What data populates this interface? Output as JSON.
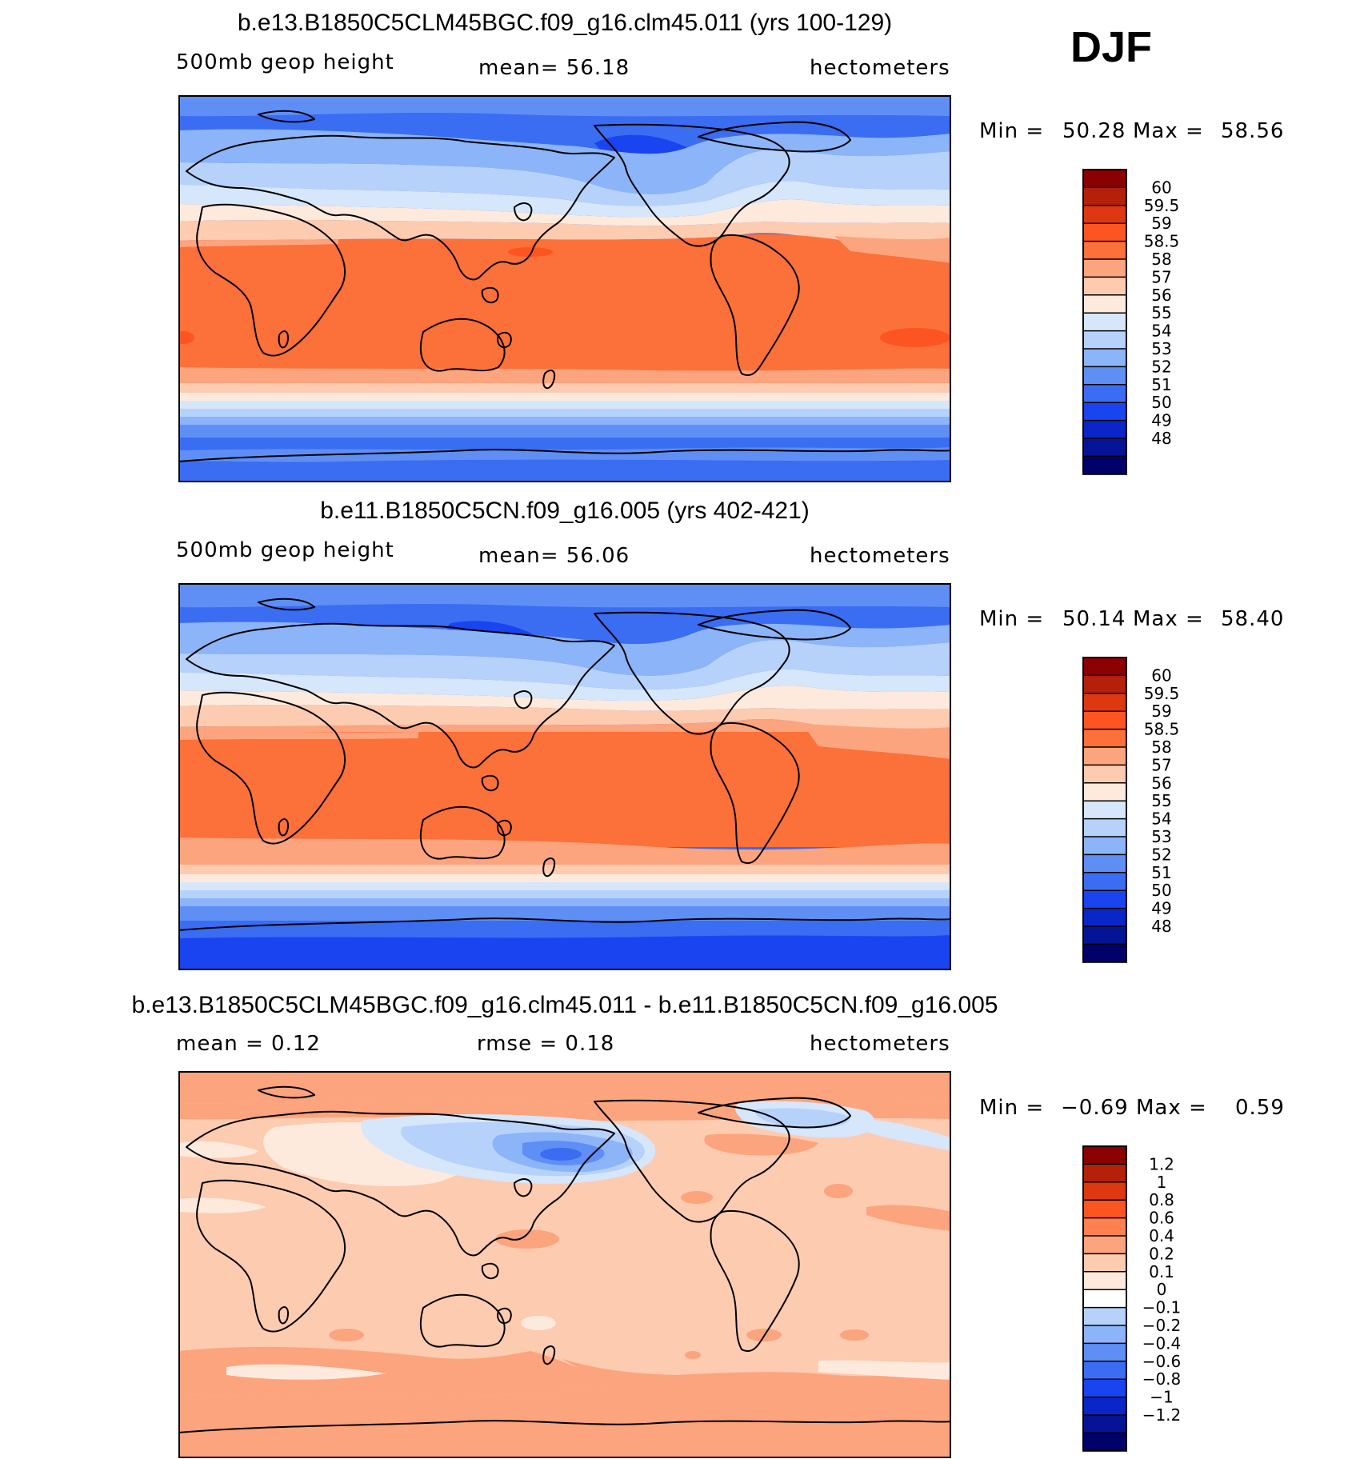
{
  "season": "DJF",
  "panels": [
    {
      "title": "b.e13.B1850C5CLM45BGC.f09_g16.clm45.011 (yrs 100-129)",
      "left_label": "500mb  geop  height",
      "mid_label": "mean=   56.18",
      "units": "hectometers",
      "min_label": "Min  =",
      "min_value": "50.28",
      "max_label": "Max  =",
      "max_value": "58.56",
      "colorbar": {
        "labels": [
          "60",
          "59.5",
          "59",
          "58.5",
          "58",
          "57",
          "56",
          "55",
          "54",
          "53",
          "52",
          "51",
          "50",
          "49",
          "48"
        ],
        "colors": [
          "#8b0000",
          "#b5200a",
          "#dd3811",
          "#fd5521",
          "#fc703a",
          "#fca47e",
          "#fdcbb0",
          "#feeadc",
          "#d6e6fb",
          "#b6d2fb",
          "#8cb4f8",
          "#5f8ff5",
          "#3a6df2",
          "#1a44f0",
          "#0a26c8",
          "#051496",
          "#00006b"
        ]
      }
    },
    {
      "title": "b.e11.B1850C5CN.f09_g16.005 (yrs 402-421)",
      "left_label": "500mb  geop  height",
      "mid_label": "mean=   56.06",
      "units": "hectometers",
      "min_label": "Min  =",
      "min_value": "50.14",
      "max_label": "Max  =",
      "max_value": "58.40",
      "colorbar": {
        "labels": [
          "60",
          "59.5",
          "59",
          "58.5",
          "58",
          "57",
          "56",
          "55",
          "54",
          "53",
          "52",
          "51",
          "50",
          "49",
          "48"
        ],
        "colors": [
          "#8b0000",
          "#b5200a",
          "#dd3811",
          "#fd5521",
          "#fc703a",
          "#fca47e",
          "#fdcbb0",
          "#feeadc",
          "#d6e6fb",
          "#b6d2fb",
          "#8cb4f8",
          "#5f8ff5",
          "#3a6df2",
          "#1a44f0",
          "#0a26c8",
          "#051496",
          "#00006b"
        ]
      }
    },
    {
      "title": "b.e13.B1850C5CLM45BGC.f09_g16.clm45.011 - b.e11.B1850C5CN.f09_g16.005",
      "left_label": "mean  =     0.12",
      "mid_label": "rmse  =     0.18",
      "units": "hectometers",
      "min_label": "Min  =",
      "min_value": "−0.69",
      "max_label": "Max  =",
      "max_value": "0.59",
      "colorbar": {
        "labels": [
          "1.2",
          "1",
          "0.8",
          "0.6",
          "0.4",
          "0.2",
          "0.1",
          "0",
          "−0.1",
          "−0.2",
          "−0.4",
          "−0.6",
          "−0.8",
          "−1",
          "−1.2"
        ],
        "colors": [
          "#8b0000",
          "#b5200a",
          "#dd3811",
          "#fd5521",
          "#fc8050",
          "#fca47e",
          "#fdcbb0",
          "#feeadc",
          "#ffffff",
          "#b6d2fb",
          "#8cb4f8",
          "#5f8ff5",
          "#3a6df2",
          "#1a44f0",
          "#0a26c8",
          "#051496",
          "#00006b"
        ]
      }
    }
  ],
  "chart_data": [
    {
      "type": "heatmap",
      "map_type": "global contour map",
      "title": "b.e13.B1850C5CLM45BGC.f09_g16.clm45.011 (yrs 100-129)",
      "variable": "500mb geop height",
      "season": "DJF",
      "units": "hectometers",
      "mean": 56.18,
      "min": 50.28,
      "max": 58.56,
      "contour_levels": [
        48,
        49,
        50,
        51,
        52,
        53,
        54,
        55,
        56,
        57,
        58,
        58.5,
        59,
        59.5,
        60
      ]
    },
    {
      "type": "heatmap",
      "map_type": "global contour map",
      "title": "b.e11.B1850C5CN.f09_g16.005 (yrs 402-421)",
      "variable": "500mb geop height",
      "season": "DJF",
      "units": "hectometers",
      "mean": 56.06,
      "min": 50.14,
      "max": 58.4,
      "contour_levels": [
        48,
        49,
        50,
        51,
        52,
        53,
        54,
        55,
        56,
        57,
        58,
        58.5,
        59,
        59.5,
        60
      ]
    },
    {
      "type": "heatmap",
      "map_type": "global difference contour map",
      "title": "b.e13.B1850C5CLM45BGC.f09_g16.clm45.011 - b.e11.B1850C5CN.f09_g16.005",
      "season": "DJF",
      "units": "hectometers",
      "mean": 0.12,
      "rmse": 0.18,
      "min": -0.69,
      "max": 0.59,
      "contour_levels": [
        -1.2,
        -1,
        -0.8,
        -0.6,
        -0.4,
        -0.2,
        -0.1,
        0,
        0.1,
        0.2,
        0.4,
        0.6,
        0.8,
        1,
        1.2
      ]
    }
  ]
}
